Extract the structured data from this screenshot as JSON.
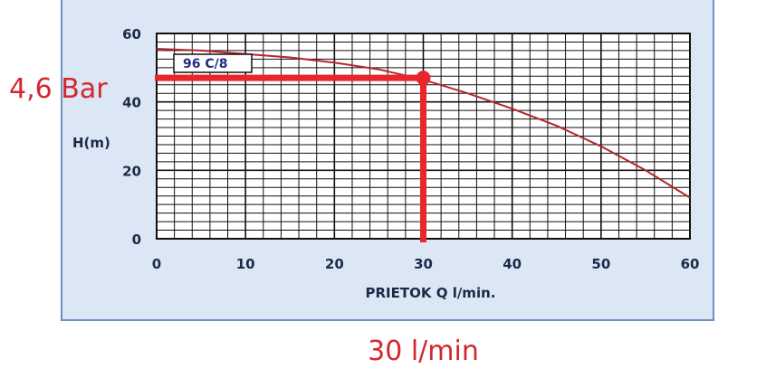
{
  "chart_data": {
    "type": "line",
    "xlabel": "PRIETOK  Q  l/min.",
    "ylabel": "H(m)",
    "xlim": [
      0,
      60
    ],
    "ylim": [
      0,
      60
    ],
    "x_ticks": [
      0,
      10,
      20,
      30,
      40,
      50,
      60
    ],
    "y_ticks": [
      0,
      20,
      40,
      60
    ],
    "grid": true,
    "series": [
      {
        "name": "96 C/8",
        "color": "#b5262b",
        "x": [
          0,
          5,
          10,
          15,
          20,
          25,
          30,
          35,
          40,
          45,
          50,
          55,
          60
        ],
        "y": [
          55.5,
          55,
          54,
          53,
          51.5,
          49.5,
          46.5,
          42.5,
          38,
          33,
          27,
          20,
          12
        ]
      }
    ],
    "annotations": {
      "highlight_point": {
        "x": 30,
        "y": 47
      },
      "pressure_label": "4,6 Bar",
      "flow_label": "30 l/min",
      "color": "#e8262c"
    }
  }
}
